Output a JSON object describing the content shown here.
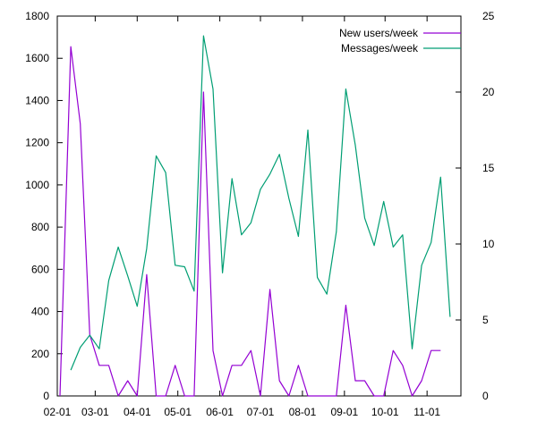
{
  "chart_data": {
    "type": "line",
    "title": "",
    "xlabel": "",
    "ylabel": "",
    "y2label": "",
    "x_unit": "days",
    "x_ticks": [
      "02-01",
      "03-01",
      "04-01",
      "05-01",
      "06-01",
      "07-01",
      "08-01",
      "09-01",
      "10-01",
      "11-01"
    ],
    "x_tick_values": [
      0,
      28,
      59,
      89,
      120,
      150,
      181,
      212,
      242,
      273
    ],
    "xlim": [
      0,
      298
    ],
    "ylim": [
      0,
      1800
    ],
    "y2lim": [
      0,
      25
    ],
    "y_ticks": [
      0,
      200,
      400,
      600,
      800,
      1000,
      1200,
      1400,
      1600,
      1800
    ],
    "y2_ticks": [
      0,
      5,
      10,
      15,
      20,
      25
    ],
    "grid": false,
    "legend_position": "top-right",
    "series": [
      {
        "name": "New users/week",
        "axis": "left",
        "color": "#9400d3",
        "points": [
          [
            2,
            0
          ],
          [
            10,
            1655
          ],
          [
            17,
            1290
          ],
          [
            24,
            290
          ],
          [
            31,
            145
          ],
          [
            38,
            145
          ],
          [
            45,
            0
          ],
          [
            52,
            72
          ],
          [
            59,
            0
          ],
          [
            66,
            575
          ],
          [
            73,
            0
          ],
          [
            80,
            0
          ],
          [
            87,
            145
          ],
          [
            94,
            0
          ],
          [
            101,
            0
          ],
          [
            108,
            1440
          ],
          [
            115,
            215
          ],
          [
            122,
            0
          ],
          [
            129,
            145
          ],
          [
            136,
            145
          ],
          [
            143,
            215
          ],
          [
            150,
            0
          ],
          [
            157,
            505
          ],
          [
            164,
            72
          ],
          [
            171,
            0
          ],
          [
            178,
            145
          ],
          [
            185,
            0
          ],
          [
            192,
            0
          ],
          [
            199,
            0
          ],
          [
            206,
            0
          ],
          [
            213,
            430
          ],
          [
            220,
            72
          ],
          [
            227,
            72
          ],
          [
            234,
            0
          ],
          [
            241,
            0
          ],
          [
            248,
            215
          ],
          [
            255,
            145
          ],
          [
            262,
            0
          ],
          [
            269,
            72
          ],
          [
            276,
            215
          ],
          [
            283,
            215
          ]
        ]
      },
      {
        "name": "Messages/week",
        "axis": "right",
        "color": "#009e73",
        "points": [
          [
            10,
            1.7
          ],
          [
            17,
            3.2
          ],
          [
            24,
            4.0
          ],
          [
            31,
            3.1
          ],
          [
            38,
            7.6
          ],
          [
            45,
            9.8
          ],
          [
            52,
            7.9
          ],
          [
            59,
            5.9
          ],
          [
            66,
            9.7
          ],
          [
            73,
            15.8
          ],
          [
            80,
            14.7
          ],
          [
            87,
            8.6
          ],
          [
            94,
            8.5
          ],
          [
            101,
            6.9
          ],
          [
            108,
            23.7
          ],
          [
            115,
            20.2
          ],
          [
            122,
            8.1
          ],
          [
            129,
            14.3
          ],
          [
            136,
            10.6
          ],
          [
            143,
            11.4
          ],
          [
            150,
            13.6
          ],
          [
            157,
            14.6
          ],
          [
            164,
            15.9
          ],
          [
            171,
            13.0
          ],
          [
            178,
            10.5
          ],
          [
            185,
            17.5
          ],
          [
            192,
            7.8
          ],
          [
            199,
            6.7
          ],
          [
            206,
            10.8
          ],
          [
            213,
            20.2
          ],
          [
            220,
            16.5
          ],
          [
            227,
            11.7
          ],
          [
            234,
            9.9
          ],
          [
            241,
            12.8
          ],
          [
            248,
            9.8
          ],
          [
            255,
            10.6
          ],
          [
            262,
            3.1
          ],
          [
            269,
            8.6
          ],
          [
            276,
            10.1
          ],
          [
            283,
            14.4
          ],
          [
            290,
            5.2
          ]
        ]
      }
    ]
  }
}
